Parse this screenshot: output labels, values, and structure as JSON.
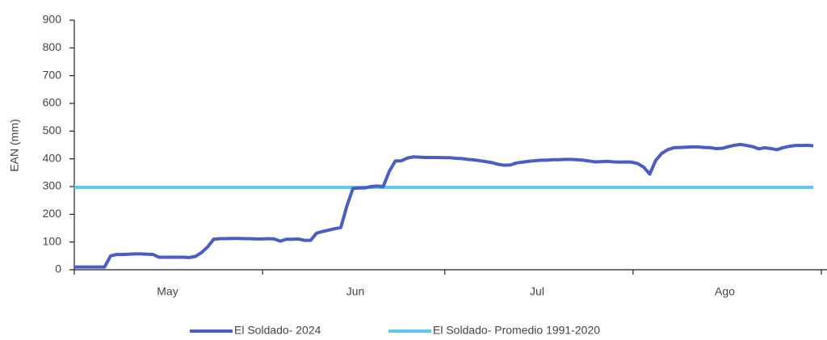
{
  "chart_data": {
    "type": "line",
    "y_label": "EAN (mm)",
    "categories": [
      null,
      null,
      null,
      null,
      null,
      null,
      null,
      null,
      null,
      null,
      null,
      null,
      null,
      null,
      null,
      "May",
      null,
      null,
      null,
      null,
      null,
      null,
      null,
      null,
      null,
      null,
      null,
      null,
      null,
      null,
      null,
      null,
      null,
      null,
      null,
      null,
      null,
      null,
      null,
      null,
      null,
      null,
      null,
      null,
      null,
      null,
      "Jun",
      null,
      null,
      null,
      null,
      null,
      null,
      null,
      null,
      null,
      null,
      null,
      null,
      null,
      null,
      null,
      null,
      null,
      null,
      null,
      null,
      null,
      null,
      null,
      null,
      null,
      null,
      null,
      null,
      null,
      "Jul",
      null,
      null,
      null,
      null,
      null,
      null,
      null,
      null,
      null,
      null,
      null,
      null,
      null,
      null,
      null,
      null,
      null,
      null,
      null,
      null,
      null,
      null,
      null,
      null,
      null,
      null,
      null,
      null,
      null,
      null,
      "Ago",
      null,
      null,
      null,
      null,
      null,
      null,
      null,
      null,
      null,
      null,
      null,
      null,
      null,
      null,
      null
    ],
    "series": [
      {
        "name": "El Soldado- 2024",
        "color": "#4a5cc6",
        "values": [
          10,
          10,
          10,
          10,
          10,
          10,
          50,
          55,
          55,
          56,
          57,
          57,
          56,
          55,
          45,
          45,
          45,
          45,
          45,
          44,
          48,
          62,
          82,
          110,
          112,
          112,
          113,
          113,
          112,
          112,
          111,
          111,
          112,
          111,
          103,
          110,
          110,
          111,
          106,
          106,
          132,
          138,
          143,
          148,
          152,
          230,
          293,
          295,
          295,
          300,
          302,
          300,
          355,
          392,
          393,
          403,
          407,
          406,
          405,
          405,
          405,
          404,
          404,
          402,
          401,
          398,
          396,
          393,
          390,
          386,
          380,
          377,
          378,
          385,
          388,
          391,
          393,
          395,
          395,
          397,
          397,
          398,
          398,
          397,
          395,
          392,
          389,
          390,
          391,
          389,
          388,
          389,
          388,
          383,
          370,
          345,
          395,
          420,
          433,
          440,
          441,
          442,
          443,
          443,
          441,
          440,
          437,
          438,
          444,
          449,
          452,
          448,
          444,
          436,
          440,
          437,
          433,
          440,
          445,
          448,
          448,
          449,
          447
        ]
      },
      {
        "name": "El Soldado- Promedio 1991-2020",
        "color": "#5cc8f0",
        "values": [
          297,
          297,
          297,
          297,
          297,
          297,
          297,
          297,
          297,
          297,
          297,
          297,
          297,
          297,
          297,
          297,
          297,
          297,
          297,
          297,
          297,
          297,
          297,
          297,
          297,
          297,
          297,
          297,
          297,
          297,
          297,
          297,
          297,
          297,
          297,
          297,
          297,
          297,
          297,
          297,
          297,
          297,
          297,
          297,
          297,
          297,
          297,
          297,
          297,
          297,
          297,
          297,
          297,
          297,
          297,
          297,
          297,
          297,
          297,
          297,
          297,
          297,
          297,
          297,
          297,
          297,
          297,
          297,
          297,
          297,
          297,
          297,
          297,
          297,
          297,
          297,
          297,
          297,
          297,
          297,
          297,
          297,
          297,
          297,
          297,
          297,
          297,
          297,
          297,
          297,
          297,
          297,
          297,
          297,
          297,
          297,
          297,
          297,
          297,
          297,
          297,
          297,
          297,
          297,
          297,
          297,
          297,
          297,
          297,
          297,
          297,
          297,
          297,
          297,
          297,
          297,
          297,
          297,
          297,
          297,
          297,
          297,
          297
        ]
      }
    ],
    "ylim": [
      0,
      900
    ],
    "yticks": [
      0,
      100,
      200,
      300,
      400,
      500,
      600,
      700,
      800,
      900
    ],
    "grid": false
  }
}
